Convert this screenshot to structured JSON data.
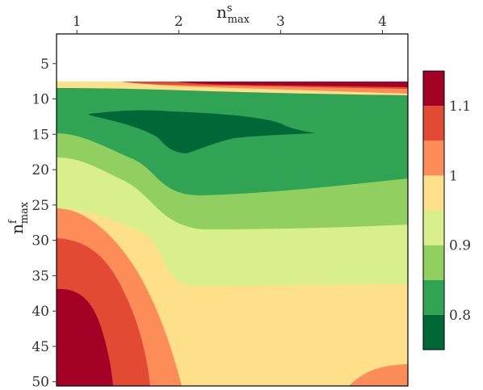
{
  "chart_data": {
    "type": "heatmap",
    "subtype": "filled-contour",
    "title": "",
    "xlabel": {
      "base": "n",
      "sup": "s",
      "sub": "max"
    },
    "ylabel": {
      "base": "n",
      "sup": "f",
      "sub": "max"
    },
    "x_axis_position": "top",
    "y_axis_inverted": true,
    "xlim": [
      0.8,
      4.25
    ],
    "ylim": [
      50,
      1
    ],
    "x_ticks": [
      "1",
      "2",
      "3",
      "4"
    ],
    "x_tick_values": [
      1,
      2,
      3,
      4
    ],
    "y_ticks": [
      "5",
      "10",
      "15",
      "20",
      "25",
      "30",
      "35",
      "40",
      "45",
      "50"
    ],
    "y_tick_values": [
      5,
      10,
      15,
      20,
      25,
      30,
      35,
      40,
      45,
      50
    ],
    "levels": [
      0.75,
      0.8,
      0.85,
      0.9,
      0.95,
      1.0,
      1.05,
      1.1,
      1.15
    ],
    "level_colors": [
      "#006837",
      "#31a354",
      "#91cf60",
      "#d9ef8b",
      "#fee08b",
      "#fc8d59",
      "#e34a33",
      "#a50026"
    ],
    "colorbar_ticks": [
      "0.8",
      "0.9",
      "1",
      "1.1"
    ],
    "colorbar_tick_values": [
      0.8,
      0.9,
      1.0,
      1.1
    ],
    "legend_position": "right",
    "grid": false,
    "regions": [
      {
        "level_index": 4,
        "color": "#fee08b",
        "description": "background region 0.95-1.0"
      },
      {
        "level_index": 3,
        "color": "#d9ef8b"
      },
      {
        "level_index": 2,
        "color": "#91cf60"
      },
      {
        "level_index": 1,
        "color": "#31a354"
      },
      {
        "level_index": 0,
        "color": "#006837"
      },
      {
        "level_index": 5,
        "color": "#fc8d59"
      },
      {
        "level_index": 6,
        "color": "#e34a33"
      },
      {
        "level_index": 7,
        "color": "#a50026"
      }
    ]
  }
}
